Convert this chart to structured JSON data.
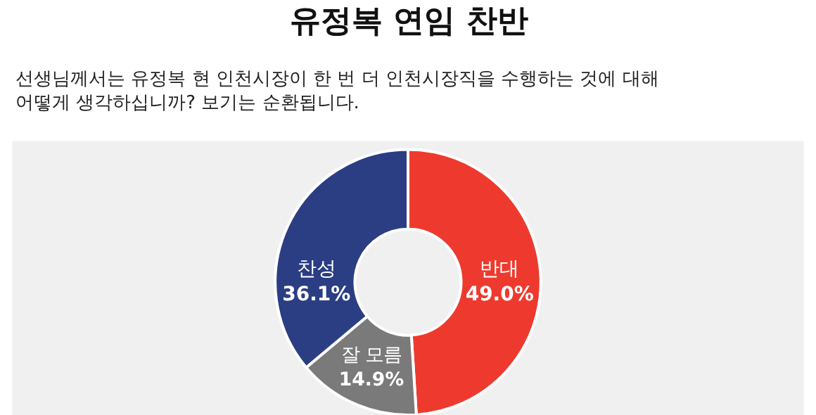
{
  "chart_data": {
    "type": "donut",
    "title": "유정복 연임 찬반",
    "subtitle": "선생님께서는 유정복 현 인천시장이 한 번 더 인천시장직을 수행하는 것에 대해\n어떻게 생각하십니까? 보기는 순환됩니다.",
    "categories": [
      "반대",
      "잘 모름",
      "찬성"
    ],
    "values": [
      49.0,
      14.9,
      36.1
    ],
    "value_labels": [
      "49.0%",
      "14.9%",
      "36.1%"
    ],
    "colors": [
      "#ee3a2e",
      "#7a7a7a",
      "#2b3d83"
    ],
    "legend": false
  }
}
